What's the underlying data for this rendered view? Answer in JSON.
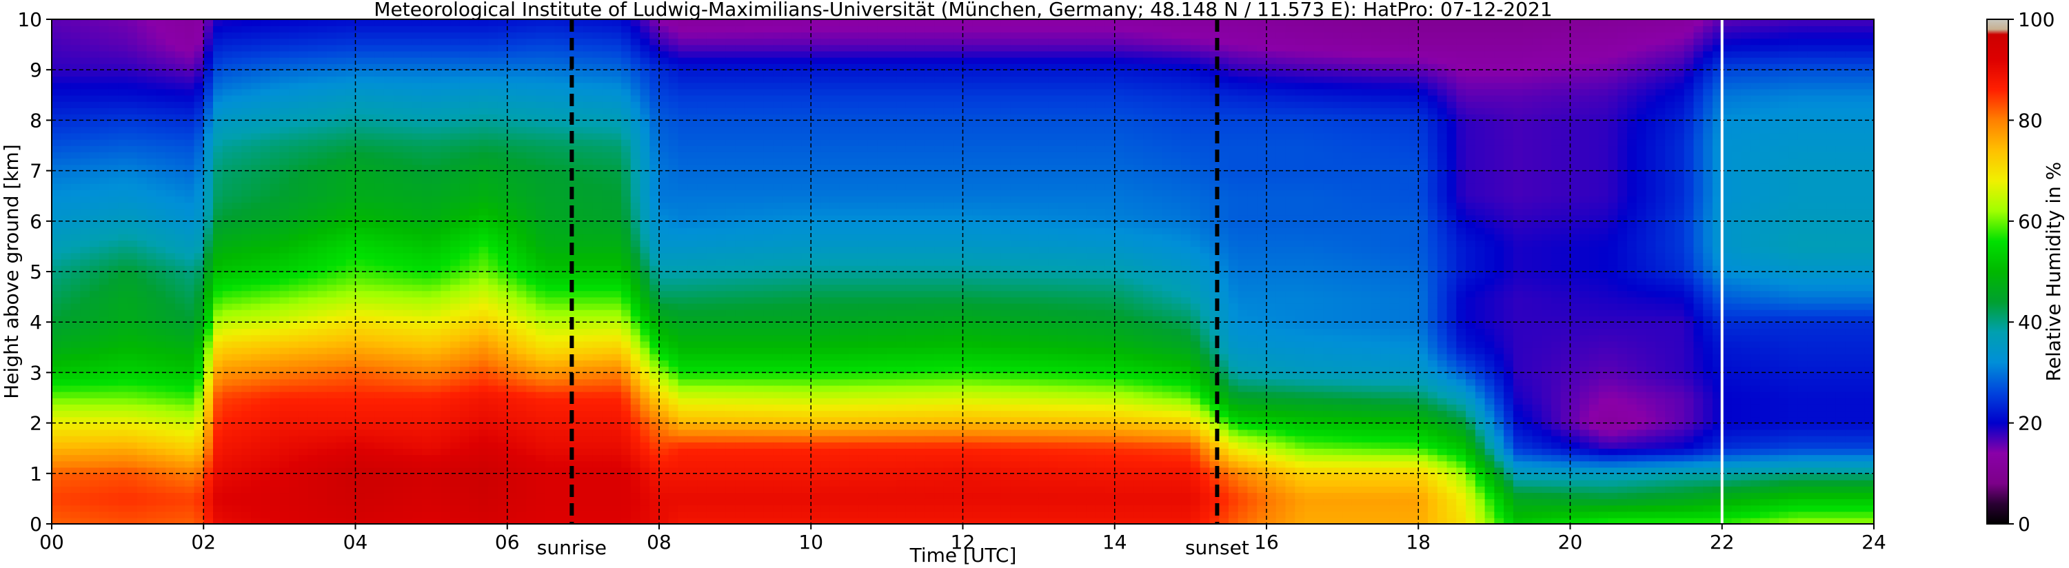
{
  "chart_data": {
    "type": "heatmap",
    "title": "Meteorological Institute of Ludwig-Maximilians-Universität (München, Germany; 48.148 N / 11.573 E):    HatPro: 07-12-2021",
    "xlabel": "Time [UTC]",
    "ylabel": "Height above ground [km]",
    "xlim": [
      0,
      24
    ],
    "ylim": [
      0,
      10
    ],
    "x_ticks": [
      "00",
      "02",
      "04",
      "06",
      "08",
      "10",
      "12",
      "14",
      "16",
      "18",
      "20",
      "22",
      "24"
    ],
    "y_ticks": [
      "0",
      "1",
      "2",
      "3",
      "4",
      "5",
      "6",
      "7",
      "8",
      "9",
      "10"
    ],
    "grid": true,
    "colorbar": {
      "label": "Relative Humidity in %",
      "range": [
        0,
        100
      ],
      "ticks": [
        "0",
        "20",
        "40",
        "60",
        "80",
        "100"
      ]
    },
    "annotations": [
      {
        "text": "sunrise",
        "x": 6.85
      },
      {
        "text": "sunset",
        "x": 15.35
      }
    ],
    "marker_line": {
      "x": 22.0,
      "color": "#ffffff"
    },
    "profile_heights_km": [
      0,
      0.5,
      1,
      1.5,
      2,
      2.5,
      3,
      3.5,
      4,
      4.5,
      5,
      5.5,
      6,
      6.5,
      7,
      7.5,
      8,
      8.5,
      9,
      9.5,
      10
    ],
    "profiles": [
      {
        "t": 0.0,
        "rh": [
          82,
          84,
          82,
          75,
          68,
          60,
          52,
          47,
          44,
          42,
          40,
          37,
          34,
          32,
          30,
          27,
          24,
          21,
          18,
          17,
          16
        ]
      },
      {
        "t": 1.0,
        "rh": [
          83,
          85,
          83,
          76,
          68,
          60,
          54,
          50,
          47,
          46,
          44,
          40,
          36,
          33,
          31,
          28,
          25,
          21,
          18,
          16,
          15
        ]
      },
      {
        "t": 1.9,
        "rh": [
          82,
          84,
          80,
          72,
          65,
          58,
          52,
          48,
          44,
          42,
          40,
          36,
          33,
          31,
          29,
          27,
          24,
          20,
          16,
          13,
          12
        ]
      },
      {
        "t": 2.2,
        "rh": [
          90,
          92,
          90,
          88,
          86,
          84,
          78,
          72,
          64,
          58,
          52,
          48,
          44,
          42,
          41,
          39,
          35,
          31,
          27,
          23,
          19
        ]
      },
      {
        "t": 3.0,
        "rh": [
          92,
          93,
          92,
          90,
          88,
          86,
          80,
          74,
          66,
          60,
          54,
          50,
          46,
          44,
          43,
          41,
          37,
          33,
          29,
          24,
          20
        ]
      },
      {
        "t": 4.0,
        "rh": [
          94,
          96,
          97,
          92,
          88,
          86,
          82,
          76,
          70,
          63,
          58,
          55,
          50,
          47,
          46,
          43,
          39,
          35,
          30,
          25,
          21
        ]
      },
      {
        "t": 5.0,
        "rh": [
          92,
          94,
          95,
          90,
          88,
          86,
          80,
          74,
          68,
          62,
          56,
          52,
          48,
          46,
          44,
          42,
          38,
          34,
          30,
          25,
          21
        ]
      },
      {
        "t": 5.7,
        "rh": [
          94,
          96,
          97,
          93,
          90,
          88,
          83,
          78,
          72,
          66,
          60,
          57,
          52,
          48,
          46,
          43,
          39,
          35,
          30,
          25,
          21
        ]
      },
      {
        "t": 6.5,
        "rh": [
          92,
          93,
          93,
          90,
          88,
          86,
          78,
          70,
          64,
          58,
          52,
          48,
          46,
          45,
          44,
          42,
          38,
          34,
          30,
          26,
          22
        ]
      },
      {
        "t": 7.5,
        "rh": [
          92,
          93,
          93,
          90,
          88,
          86,
          80,
          72,
          64,
          58,
          52,
          48,
          45,
          44,
          43,
          41,
          37,
          33,
          29,
          25,
          21
        ]
      },
      {
        "t": 8.0,
        "rh": [
          90,
          90,
          88,
          84,
          80,
          72,
          62,
          54,
          48,
          42,
          38,
          34,
          32,
          30,
          30,
          29,
          28,
          26,
          24,
          18,
          14
        ]
      },
      {
        "t": 8.3,
        "rh": [
          88,
          90,
          88,
          86,
          75,
          66,
          56,
          50,
          46,
          42,
          38,
          34,
          31,
          30,
          29,
          28,
          27,
          25,
          22,
          16,
          12
        ]
      },
      {
        "t": 10.0,
        "rh": [
          88,
          90,
          88,
          86,
          74,
          65,
          56,
          50,
          46,
          43,
          39,
          35,
          32,
          30,
          29,
          28,
          27,
          25,
          22,
          16,
          13
        ]
      },
      {
        "t": 12.0,
        "rh": [
          88,
          90,
          89,
          86,
          75,
          66,
          57,
          51,
          47,
          43,
          39,
          35,
          32,
          30,
          29,
          28,
          27,
          25,
          22,
          16,
          13
        ]
      },
      {
        "t": 14.0,
        "rh": [
          88,
          90,
          88,
          85,
          74,
          64,
          55,
          49,
          45,
          42,
          38,
          34,
          31,
          30,
          29,
          28,
          27,
          25,
          22,
          16,
          13
        ]
      },
      {
        "t": 15.0,
        "rh": [
          88,
          90,
          88,
          84,
          72,
          60,
          52,
          46,
          42,
          38,
          35,
          32,
          30,
          29,
          28,
          27,
          26,
          24,
          21,
          15,
          12
        ]
      },
      {
        "t": 15.6,
        "rh": [
          82,
          84,
          80,
          68,
          55,
          45,
          38,
          34,
          32,
          31,
          30,
          29,
          28,
          28,
          27,
          27,
          26,
          23,
          18,
          14,
          12
        ]
      },
      {
        "t": 16.5,
        "rh": [
          76,
          77,
          72,
          60,
          52,
          44,
          36,
          33,
          31,
          31,
          30,
          29,
          28,
          28,
          27,
          27,
          26,
          22,
          17,
          13,
          11
        ]
      },
      {
        "t": 18.0,
        "rh": [
          76,
          77,
          72,
          58,
          50,
          42,
          35,
          32,
          30,
          30,
          29,
          28,
          28,
          27,
          27,
          26,
          25,
          21,
          16,
          12,
          10
        ]
      },
      {
        "t": 18.6,
        "rh": [
          70,
          68,
          62,
          52,
          44,
          36,
          28,
          22,
          20,
          20,
          22,
          22,
          20,
          18,
          18,
          18,
          18,
          16,
          14,
          12,
          10
        ]
      },
      {
        "t": 19.3,
        "rh": [
          52,
          46,
          36,
          25,
          21,
          19,
          18,
          18,
          18,
          18,
          19,
          19,
          18,
          17,
          17,
          17,
          17,
          16,
          14,
          12,
          10
        ]
      },
      {
        "t": 20.5,
        "rh": [
          58,
          44,
          36,
          18,
          12,
          14,
          16,
          17,
          18,
          19,
          20,
          20,
          19,
          18,
          18,
          18,
          18,
          17,
          15,
          13,
          11
        ]
      },
      {
        "t": 21.5,
        "rh": [
          58,
          46,
          38,
          20,
          16,
          16,
          18,
          18,
          18,
          20,
          24,
          25,
          25,
          24,
          24,
          24,
          23,
          21,
          18,
          15,
          12
        ]
      },
      {
        "t": 22.0,
        "rh": [
          58,
          48,
          38,
          24,
          20,
          20,
          21,
          22,
          24,
          28,
          32,
          34,
          34,
          33,
          33,
          33,
          32,
          30,
          26,
          20,
          16
        ]
      },
      {
        "t": 23.0,
        "rh": [
          62,
          52,
          40,
          26,
          21,
          21,
          22,
          23,
          24,
          30,
          34,
          37,
          36,
          35,
          35,
          34,
          33,
          31,
          27,
          21,
          17
        ]
      },
      {
        "t": 24.0,
        "rh": [
          62,
          52,
          40,
          26,
          21,
          21,
          22,
          23,
          24,
          30,
          34,
          37,
          36,
          35,
          35,
          34,
          33,
          31,
          27,
          21,
          17
        ]
      }
    ]
  }
}
